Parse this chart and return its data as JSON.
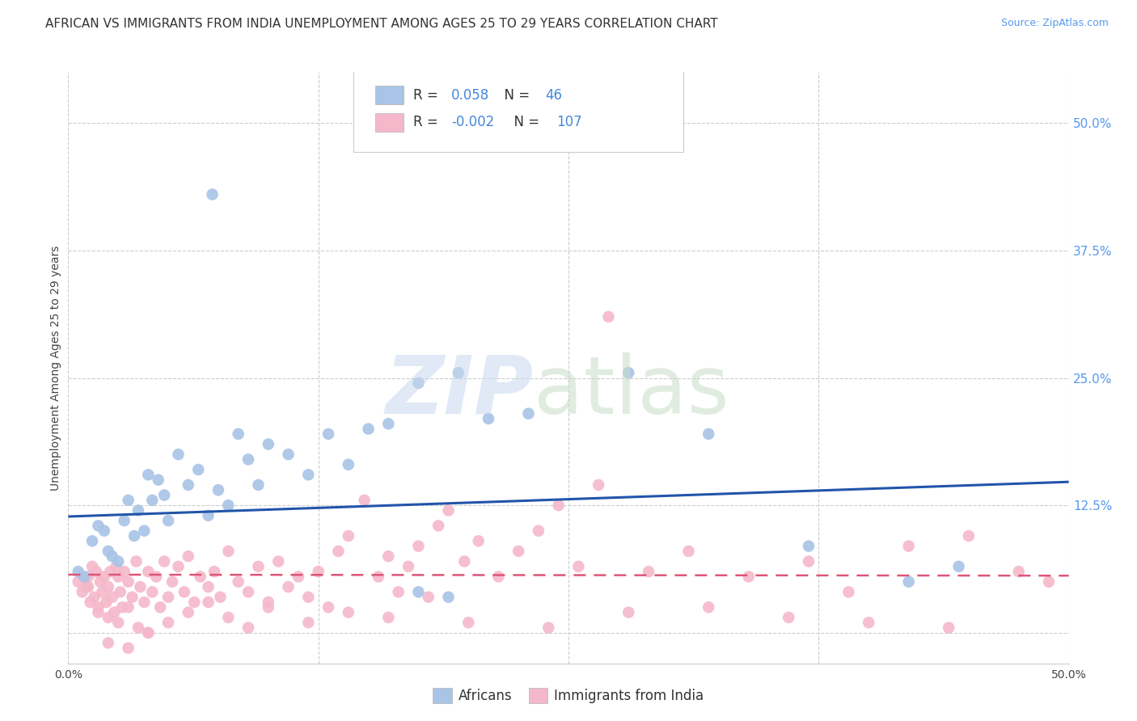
{
  "title": "AFRICAN VS IMMIGRANTS FROM INDIA UNEMPLOYMENT AMONG AGES 25 TO 29 YEARS CORRELATION CHART",
  "source": "Source: ZipAtlas.com",
  "ylabel": "Unemployment Among Ages 25 to 29 years",
  "xlim": [
    0.0,
    0.5
  ],
  "ylim": [
    -0.03,
    0.55
  ],
  "xticks": [
    0.0,
    0.125,
    0.25,
    0.375,
    0.5
  ],
  "xticklabels": [
    "0.0%",
    "",
    "",
    "",
    "50.0%"
  ],
  "ytick_positions": [
    0.0,
    0.125,
    0.25,
    0.375,
    0.5
  ],
  "ytick_labels_right": [
    "",
    "12.5%",
    "25.0%",
    "37.5%",
    "50.0%"
  ],
  "africans_color": "#a8c4e6",
  "india_color": "#f5b8cb",
  "africans_line_color": "#2255aa",
  "india_line_color": "#dd5577",
  "background_color": "#ffffff",
  "grid_color": "#cccccc",
  "title_fontsize": 11,
  "axis_label_fontsize": 10,
  "tick_label_fontsize": 10,
  "legend_fontsize": 11,
  "source_fontsize": 9,
  "africans_line_x0": 0.0,
  "africans_line_y0": 0.114,
  "africans_line_x1": 0.5,
  "africans_line_y1": 0.148,
  "india_line_x0": 0.0,
  "india_line_y0": 0.057,
  "india_line_x1": 0.5,
  "india_line_y1": 0.056,
  "africans_x": [
    0.072,
    0.175,
    0.195,
    0.445,
    0.005,
    0.008,
    0.012,
    0.015,
    0.018,
    0.02,
    0.022,
    0.025,
    0.028,
    0.03,
    0.033,
    0.035,
    0.038,
    0.04,
    0.042,
    0.045,
    0.048,
    0.05,
    0.055,
    0.06,
    0.065,
    0.07,
    0.075,
    0.08,
    0.085,
    0.09,
    0.095,
    0.1,
    0.11,
    0.12,
    0.13,
    0.14,
    0.15,
    0.16,
    0.175,
    0.19,
    0.21,
    0.23,
    0.28,
    0.32,
    0.37,
    0.42
  ],
  "africans_y": [
    0.43,
    0.245,
    0.255,
    0.065,
    0.06,
    0.055,
    0.09,
    0.105,
    0.1,
    0.08,
    0.075,
    0.07,
    0.11,
    0.13,
    0.095,
    0.12,
    0.1,
    0.155,
    0.13,
    0.15,
    0.135,
    0.11,
    0.175,
    0.145,
    0.16,
    0.115,
    0.14,
    0.125,
    0.195,
    0.17,
    0.145,
    0.185,
    0.175,
    0.155,
    0.195,
    0.165,
    0.2,
    0.205,
    0.04,
    0.035,
    0.21,
    0.215,
    0.255,
    0.195,
    0.085,
    0.05
  ],
  "india_x": [
    0.27,
    0.005,
    0.007,
    0.009,
    0.01,
    0.011,
    0.012,
    0.013,
    0.014,
    0.015,
    0.016,
    0.017,
    0.018,
    0.019,
    0.02,
    0.021,
    0.022,
    0.023,
    0.024,
    0.025,
    0.026,
    0.027,
    0.028,
    0.03,
    0.032,
    0.034,
    0.036,
    0.038,
    0.04,
    0.042,
    0.044,
    0.046,
    0.048,
    0.05,
    0.052,
    0.055,
    0.058,
    0.06,
    0.063,
    0.066,
    0.07,
    0.073,
    0.076,
    0.08,
    0.085,
    0.09,
    0.095,
    0.1,
    0.105,
    0.11,
    0.115,
    0.12,
    0.125,
    0.13,
    0.135,
    0.14,
    0.148,
    0.155,
    0.16,
    0.165,
    0.17,
    0.175,
    0.18,
    0.185,
    0.19,
    0.198,
    0.205,
    0.215,
    0.225,
    0.235,
    0.245,
    0.255,
    0.265,
    0.29,
    0.31,
    0.34,
    0.37,
    0.39,
    0.42,
    0.45,
    0.475,
    0.49,
    0.01,
    0.015,
    0.02,
    0.025,
    0.03,
    0.035,
    0.04,
    0.05,
    0.06,
    0.07,
    0.08,
    0.09,
    0.1,
    0.12,
    0.14,
    0.16,
    0.2,
    0.24,
    0.28,
    0.32,
    0.36,
    0.4,
    0.44,
    0.02,
    0.03,
    0.04
  ],
  "india_y": [
    0.31,
    0.05,
    0.04,
    0.045,
    0.055,
    0.03,
    0.065,
    0.035,
    0.06,
    0.025,
    0.05,
    0.04,
    0.055,
    0.03,
    0.045,
    0.06,
    0.035,
    0.02,
    0.065,
    0.055,
    0.04,
    0.025,
    0.06,
    0.05,
    0.035,
    0.07,
    0.045,
    0.03,
    0.06,
    0.04,
    0.055,
    0.025,
    0.07,
    0.035,
    0.05,
    0.065,
    0.04,
    0.075,
    0.03,
    0.055,
    0.045,
    0.06,
    0.035,
    0.08,
    0.05,
    0.04,
    0.065,
    0.03,
    0.07,
    0.045,
    0.055,
    0.035,
    0.06,
    0.025,
    0.08,
    0.095,
    0.13,
    0.055,
    0.075,
    0.04,
    0.065,
    0.085,
    0.035,
    0.105,
    0.12,
    0.07,
    0.09,
    0.055,
    0.08,
    0.1,
    0.125,
    0.065,
    0.145,
    0.06,
    0.08,
    0.055,
    0.07,
    0.04,
    0.085,
    0.095,
    0.06,
    0.05,
    0.045,
    0.02,
    0.015,
    0.01,
    0.025,
    0.005,
    0.0,
    0.01,
    0.02,
    0.03,
    0.015,
    0.005,
    0.025,
    0.01,
    0.02,
    0.015,
    0.01,
    0.005,
    0.02,
    0.025,
    0.015,
    0.01,
    0.005,
    -0.01,
    -0.015,
    0.0
  ]
}
